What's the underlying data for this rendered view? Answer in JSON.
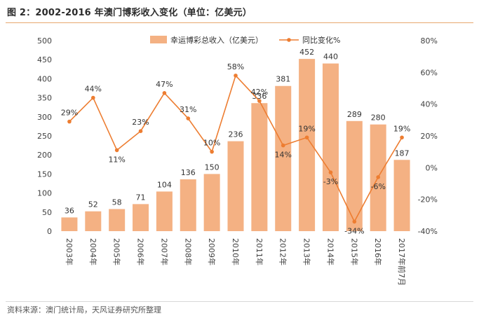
{
  "figure": {
    "title": "图 2：2002-2016 年澳门博彩收入变化（单位：亿美元）",
    "source": "资料来源：澳门统计局，天风证券研究所整理"
  },
  "chart_data": {
    "type": "bar+line",
    "categories": [
      "2003年",
      "2004年",
      "2005年",
      "2006年",
      "2007年",
      "2008年",
      "2009年",
      "2010年",
      "2011年",
      "2012年",
      "2013年",
      "2014年",
      "2015年",
      "2016年",
      "2017年前7月"
    ],
    "series": [
      {
        "name": "幸运博彩总收入（亿美元）",
        "type": "bar",
        "axis": "left",
        "color": "#f4b183",
        "values": [
          36,
          52,
          58,
          71,
          104,
          136,
          150,
          236,
          336,
          381,
          452,
          440,
          289,
          280,
          187
        ],
        "labels": [
          "36",
          "52",
          "58",
          "71",
          "104",
          "136",
          "150",
          "236",
          "336",
          "381",
          "452",
          "440",
          "289",
          "280",
          "187"
        ]
      },
      {
        "name": "同比变化%",
        "type": "line",
        "axis": "right",
        "color": "#ed7d31",
        "values": [
          29,
          44,
          11,
          23,
          47,
          31,
          10,
          58,
          42,
          14,
          19,
          -3,
          -34,
          -6,
          19
        ],
        "labels": [
          "29%",
          "44%",
          "11%",
          "23%",
          "47%",
          "31%",
          "10%",
          "58%",
          "42%",
          "14%",
          "19%",
          "-3%",
          "-34%",
          "-6%",
          "19%"
        ]
      }
    ],
    "y_left": {
      "min": 0,
      "max": 500,
      "step": 50,
      "ticks": [
        "0",
        "50",
        "100",
        "150",
        "200",
        "250",
        "300",
        "350",
        "400",
        "450",
        "500"
      ]
    },
    "y_right": {
      "min": -40,
      "max": 80,
      "step": 20,
      "ticks": [
        "-40%",
        "-20%",
        "0%",
        "20%",
        "40%",
        "60%",
        "80%"
      ]
    },
    "legend": {
      "position": "top-center",
      "bar_label": "幸运博彩总收入（亿美元）",
      "line_label": "同比变化%"
    },
    "grid": false
  }
}
